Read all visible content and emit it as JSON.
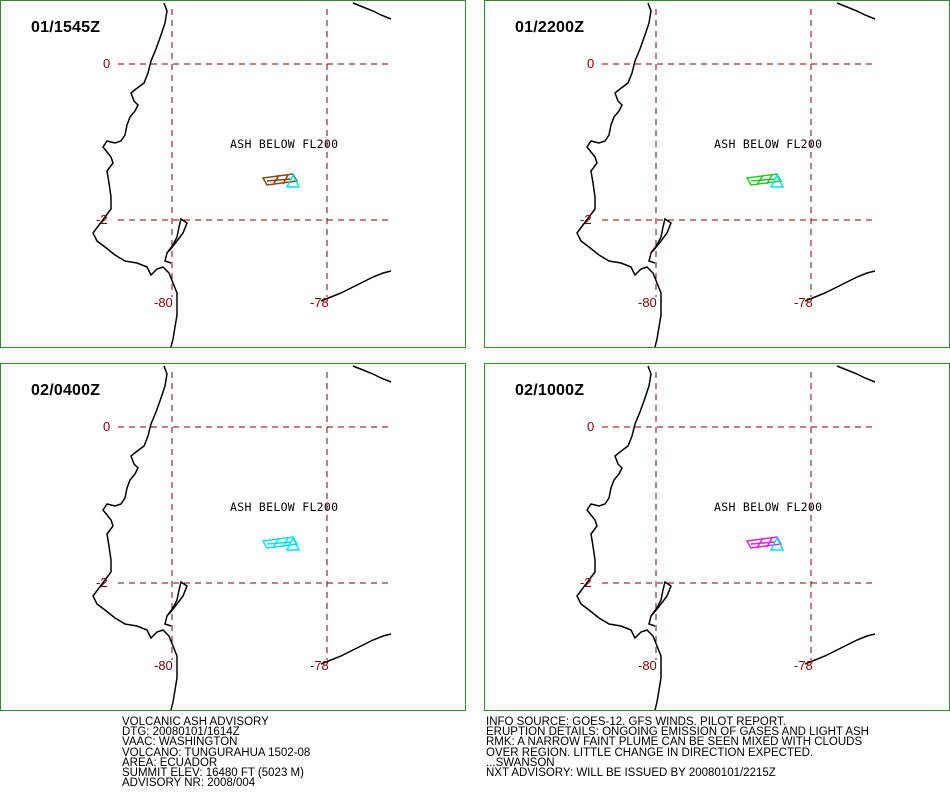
{
  "panels": [
    {
      "title": "01/1545Z",
      "plume_color": "#8b4513"
    },
    {
      "title": "01/2200Z",
      "plume_color": "#22cc22"
    },
    {
      "title": "02/0400Z",
      "plume_color": "#00e5ee"
    },
    {
      "title": "02/1000Z",
      "plume_color": "#e020e0"
    }
  ],
  "map": {
    "lat_labels": [
      "0",
      "-2"
    ],
    "lon_labels": [
      "-80",
      "-78"
    ],
    "ash_label": "ASH BELOW FL200",
    "volcano_color": "#00e5ee",
    "grid_color": "#800000",
    "border_color": "#2e8b2e"
  },
  "advisory_left": [
    "VOLCANIC ASH ADVISORY",
    "DTG: 20080101/1614Z",
    "VAAC: WASHINGTON",
    "VOLCANO: TUNGURAHUA 1502-08",
    "AREA: ECUADOR",
    "SUMMIT ELEV: 16480 FT (5023 M)",
    "ADVISORY NR: 2008/004"
  ],
  "advisory_right": [
    "INFO SOURCE: GOES-12. GFS WINDS. PILOT REPORT.",
    "ERUPTION DETAILS: ONGOING EMISSION OF GASES AND LIGHT ASH",
    "RMK: A NARROW FAINT PLUME CAN BE SEEN MIXED WITH CLOUDS",
    "OVER REGION. LITTLE CHANGE IN DIRECTION EXPECTED.",
    "...SWANSON",
    "NXT ADVISORY: WILL BE ISSUED BY 20080101/2215Z"
  ]
}
